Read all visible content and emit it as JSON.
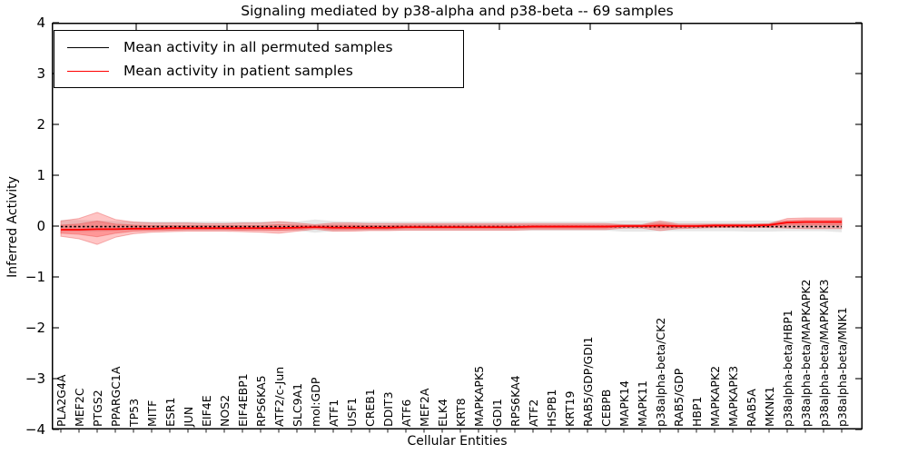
{
  "figure": {
    "title": "Signaling mediated by p38-alpha and p38-beta -- 69 samples",
    "xlabel": "Cellular Entities",
    "ylabel": "Inferred Activity"
  },
  "legend": {
    "items": [
      {
        "label": "Mean activity in all permuted samples",
        "color": "#000000"
      },
      {
        "label": "Mean activity in patient samples",
        "color": "#ff0000"
      }
    ]
  },
  "chart_data": {
    "type": "line",
    "title": "Signaling mediated by p38-alpha and p38-beta -- 69 samples",
    "xlabel": "Cellular Entities",
    "ylabel": "Inferred Activity",
    "ylim": [
      -4,
      4
    ],
    "ytick_labels": [
      "4",
      "3",
      "2",
      "1",
      "0",
      "−1",
      "−2",
      "−3",
      "−4"
    ],
    "grid": false,
    "legend_position": "upper left",
    "categories": [
      "PLA2G4A",
      "MEF2C",
      "PTGS2",
      "PPARGC1A",
      "TP53",
      "MITF",
      "ESR1",
      "JUN",
      "EIF4E",
      "NOS2",
      "EIF4EBP1",
      "RPS6KA5",
      "ATF2/c-Jun",
      "SLC9A1",
      "mol:GDP",
      "ATF1",
      "USF1",
      "CREB1",
      "DDIT3",
      "ATF6",
      "MEF2A",
      "ELK4",
      "KRT8",
      "MAPKAPK5",
      "GDI1",
      "RPS6KA4",
      "ATF2",
      "HSPB1",
      "KRT19",
      "RAB5/GDP/GDI1",
      "CEBPB",
      "MAPK14",
      "MAPK11",
      "p38alpha-beta/CK2",
      "RAB5/GDP",
      "HBP1",
      "MAPKAPK2",
      "MAPKAPK3",
      "RAB5A",
      "MKNK1",
      "p38alpha-beta/HBP1",
      "p38alpha-beta/MAPKAPK2",
      "p38alpha-beta/MAPKAPK3",
      "p38alpha-beta/MNK1"
    ],
    "series": [
      {
        "name": "Mean activity in all permuted samples",
        "color": "#000000",
        "style": "dashed",
        "values": [
          -0.01,
          -0.01,
          -0.01,
          -0.01,
          -0.01,
          -0.01,
          -0.01,
          -0.01,
          -0.01,
          -0.01,
          -0.01,
          -0.01,
          -0.01,
          -0.01,
          -0.01,
          -0.01,
          -0.01,
          -0.01,
          -0.01,
          -0.01,
          -0.01,
          -0.01,
          -0.01,
          -0.01,
          -0.01,
          -0.01,
          -0.01,
          -0.01,
          -0.01,
          -0.01,
          -0.01,
          -0.01,
          -0.01,
          -0.01,
          -0.01,
          -0.01,
          -0.01,
          -0.01,
          -0.01,
          -0.01,
          -0.01,
          -0.01,
          -0.01,
          -0.01
        ]
      },
      {
        "name": "Mean activity in patient samples",
        "color": "#ff0000",
        "style": "solid",
        "values": [
          -0.07,
          -0.07,
          -0.06,
          -0.06,
          -0.05,
          -0.05,
          -0.04,
          -0.04,
          -0.04,
          -0.04,
          -0.04,
          -0.04,
          -0.04,
          -0.03,
          -0.02,
          -0.03,
          -0.03,
          -0.03,
          -0.03,
          -0.02,
          -0.02,
          -0.02,
          -0.02,
          -0.02,
          -0.02,
          -0.02,
          -0.01,
          -0.01,
          -0.01,
          -0.01,
          -0.01,
          0,
          0,
          0.01,
          0,
          0,
          0.01,
          0.01,
          0.01,
          0.02,
          0.07,
          0.08,
          0.08,
          0.08
        ]
      }
    ],
    "bands": [
      {
        "name": "permuted-samples-spread",
        "fill": "rgba(120,120,120,0.18)",
        "upper": [
          0.12,
          0.12,
          0.11,
          0.1,
          0.09,
          0.09,
          0.09,
          0.09,
          0.09,
          0.09,
          0.09,
          0.09,
          0.09,
          0.09,
          0.13,
          0.1,
          0.09,
          0.09,
          0.09,
          0.09,
          0.09,
          0.09,
          0.09,
          0.09,
          0.09,
          0.09,
          0.09,
          0.09,
          0.09,
          0.09,
          0.09,
          0.11,
          0.11,
          0.1,
          0.1,
          0.1,
          0.1,
          0.1,
          0.11,
          0.11,
          0.1,
          0.1,
          0.1,
          0.12
        ],
        "lower": [
          -0.12,
          -0.12,
          -0.11,
          -0.1,
          -0.09,
          -0.09,
          -0.09,
          -0.09,
          -0.09,
          -0.09,
          -0.09,
          -0.09,
          -0.09,
          -0.09,
          -0.13,
          -0.1,
          -0.09,
          -0.09,
          -0.09,
          -0.09,
          -0.09,
          -0.09,
          -0.09,
          -0.09,
          -0.09,
          -0.09,
          -0.09,
          -0.09,
          -0.09,
          -0.09,
          -0.09,
          -0.11,
          -0.11,
          -0.1,
          -0.1,
          -0.1,
          -0.1,
          -0.1,
          -0.11,
          -0.11,
          -0.1,
          -0.1,
          -0.1,
          -0.12
        ]
      },
      {
        "name": "patient-samples-outer-spread",
        "fill": "rgba(255,45,45,0.28)",
        "upper": [
          0.1,
          0.15,
          0.27,
          0.13,
          0.08,
          0.06,
          0.06,
          0.06,
          0.05,
          0.05,
          0.06,
          0.06,
          0.09,
          0.06,
          0.03,
          0.06,
          0.06,
          0.05,
          0.05,
          0.05,
          0.05,
          0.05,
          0.05,
          0.05,
          0.05,
          0.05,
          0.05,
          0.05,
          0.05,
          0.05,
          0.05,
          0.03,
          0.03,
          0.1,
          0.04,
          0.04,
          0.04,
          0.04,
          0.04,
          0.05,
          0.15,
          0.16,
          0.16,
          0.16
        ],
        "lower": [
          -0.2,
          -0.25,
          -0.36,
          -0.22,
          -0.15,
          -0.12,
          -0.11,
          -0.1,
          -0.1,
          -0.1,
          -0.11,
          -0.12,
          -0.14,
          -0.1,
          -0.06,
          -0.1,
          -0.1,
          -0.09,
          -0.09,
          -0.08,
          -0.08,
          -0.08,
          -0.08,
          -0.08,
          -0.08,
          -0.08,
          -0.07,
          -0.07,
          -0.07,
          -0.07,
          -0.07,
          -0.04,
          -0.04,
          -0.09,
          -0.05,
          -0.04,
          -0.03,
          -0.03,
          -0.03,
          -0.03,
          -0.04,
          -0.05,
          -0.05,
          -0.05
        ]
      },
      {
        "name": "patient-samples-inner-spread",
        "fill": "rgba(255,45,45,0.30)",
        "upper": [
          0.02,
          0.04,
          0.1,
          0.04,
          0.02,
          0.01,
          0.01,
          0.01,
          0.01,
          0.01,
          0.01,
          0.01,
          0.03,
          0.02,
          0.01,
          0.02,
          0.02,
          0.01,
          0.01,
          0.02,
          0.02,
          0.02,
          0.02,
          0.02,
          0.02,
          0.02,
          0.02,
          0.02,
          0.02,
          0.02,
          0.02,
          0.02,
          0.02,
          0.06,
          0.02,
          0.02,
          0.03,
          0.03,
          0.03,
          0.04,
          0.11,
          0.12,
          0.12,
          0.12
        ],
        "lower": [
          -0.14,
          -0.16,
          -0.21,
          -0.14,
          -0.1,
          -0.09,
          -0.08,
          -0.07,
          -0.07,
          -0.07,
          -0.08,
          -0.08,
          -0.09,
          -0.07,
          -0.04,
          -0.07,
          -0.07,
          -0.06,
          -0.06,
          -0.05,
          -0.05,
          -0.05,
          -0.05,
          -0.05,
          -0.05,
          -0.05,
          -0.04,
          -0.04,
          -0.04,
          -0.04,
          -0.04,
          -0.02,
          -0.02,
          -0.04,
          -0.03,
          -0.02,
          -0.01,
          -0.01,
          -0.01,
          -0.01,
          0.02,
          0.02,
          0.02,
          0.02
        ]
      }
    ]
  }
}
